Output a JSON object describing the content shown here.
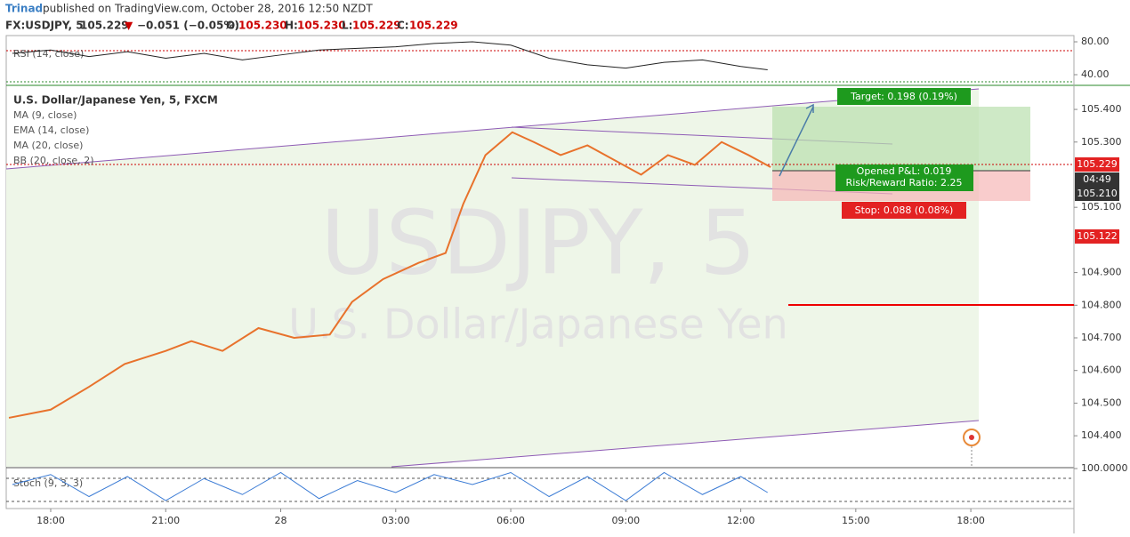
{
  "header": {
    "author": "Trinad",
    "published": "published on TradingView.com, October 28, 2016 12:50 NZDT",
    "symbol": "FX:USDJPY, 5",
    "last": "105.229",
    "arrow": "▼",
    "change": "−0.051 (−0.05%)",
    "o_label": "O:",
    "o": "105.230",
    "h_label": "H:",
    "h": "105.230",
    "l_label": "L:",
    "l": "105.229",
    "c_label": "C:",
    "c": "105.229"
  },
  "chart_data": {
    "type": "line",
    "title": "U.S. Dollar/Japanese Yen, 5, FXCM",
    "indicators": [
      "MA (9, close)",
      "EMA (14, close)",
      "MA (20, close)",
      "BB (20, close, 2)"
    ],
    "watermark": {
      "symbol": "USDJPY, 5",
      "name": "U.S. Dollar/Japanese Yen"
    },
    "x": [
      16.91,
      18,
      19,
      19.93,
      21,
      21.67,
      22.48,
      23.42,
      24.35,
      25.28,
      25.86,
      26.67,
      27.6,
      28.3,
      28.76,
      29.34,
      30.04,
      30.6,
      31.3,
      32,
      32.7,
      33.4,
      34.1,
      34.8,
      35.5,
      36.2,
      36.78
    ],
    "values": [
      104.455,
      104.48,
      104.55,
      104.62,
      104.66,
      104.69,
      104.66,
      104.73,
      104.7,
      104.71,
      104.81,
      104.88,
      104.93,
      104.96,
      105.11,
      105.26,
      105.33,
      105.3,
      105.26,
      105.29,
      105.245,
      105.2,
      105.26,
      105.23,
      105.3,
      105.26,
      105.223
    ],
    "color": "#e8722c",
    "xlim": [
      16.84,
      44.69
    ],
    "ylim": [
      104.305,
      105.471
    ],
    "xticks": [
      {
        "value": 18,
        "label": "18:00"
      },
      {
        "value": 21,
        "label": "21:00"
      },
      {
        "value": 24,
        "label": "28"
      },
      {
        "value": 27,
        "label": "03:00"
      },
      {
        "value": 30,
        "label": "06:00"
      },
      {
        "value": 33,
        "label": "09:00"
      },
      {
        "value": 36,
        "label": "12:00"
      },
      {
        "value": 39,
        "label": "15:00"
      },
      {
        "value": 42,
        "label": "18:00"
      }
    ],
    "yticks": [
      {
        "value": 104.4,
        "label": "104.400"
      },
      {
        "value": 104.5,
        "label": "104.500"
      },
      {
        "value": 104.6,
        "label": "104.600"
      },
      {
        "value": 104.7,
        "label": "104.700"
      },
      {
        "value": 104.8,
        "label": "104.800"
      },
      {
        "value": 104.9,
        "label": "104.900"
      },
      {
        "value": 105.1,
        "label": "105.100"
      },
      {
        "value": 105.3,
        "label": "105.300"
      },
      {
        "value": 105.4,
        "label": "105.400"
      }
    ],
    "price_labels": [
      "105.229",
      "04:49",
      "105.210",
      "105.122"
    ],
    "position": {
      "target": "Target: 0.198 (0.19%)",
      "pnl": "Opened P&L: 0.019",
      "rr": "Risk/Reward Ratio: 2.25",
      "stop": "Stop: 0.088 (0.08%)"
    },
    "rsi": {
      "label": "RSI (14, close)",
      "ylim": [
        28.1,
        87.6
      ],
      "yticks": [
        {
          "value": 80,
          "label": "80.00"
        },
        {
          "value": 40,
          "label": "40.00"
        }
      ],
      "x": [
        17,
        18,
        19,
        20,
        21,
        22,
        23,
        24,
        25,
        26,
        27,
        28,
        29,
        30,
        31,
        32,
        33,
        34,
        35,
        36,
        36.7
      ],
      "values": [
        66,
        70,
        62,
        68,
        60,
        66,
        58,
        64,
        70,
        72,
        74,
        78,
        80,
        76,
        60,
        52,
        48,
        55,
        58,
        50,
        46
      ]
    },
    "stoch": {
      "label": "Stoch (9, 3, 3)",
      "ylim": [
        0,
        100
      ],
      "yticks": [
        {
          "value": 100,
          "label": "100.0000"
        }
      ],
      "x": [
        17,
        18,
        19,
        20,
        21,
        22,
        23,
        24,
        25,
        26,
        27,
        28,
        29,
        30,
        31,
        32,
        33,
        34,
        35,
        36,
        36.7
      ],
      "values": [
        60,
        85,
        30,
        80,
        20,
        75,
        35,
        90,
        25,
        70,
        40,
        85,
        60,
        90,
        30,
        80,
        20,
        90,
        35,
        80,
        40
      ]
    }
  }
}
